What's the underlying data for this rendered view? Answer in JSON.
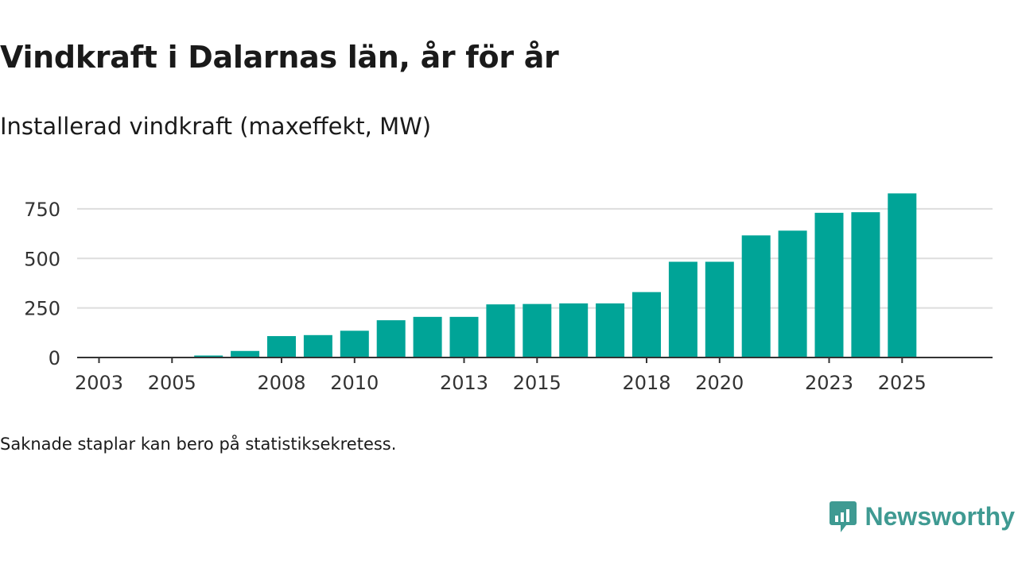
{
  "header": {
    "title": "Vindkraft i Dalarnas län, år för år",
    "subtitle": "Installerad vindkraft (maxeffekt, MW)"
  },
  "footer": {
    "note": "Saknade staplar kan bero på statistiksekretess.",
    "brand": "Newsworthy"
  },
  "colors": {
    "bar": "#00a497",
    "grid": "#dddddd",
    "axis": "#333333",
    "brand": "#3f9a92"
  },
  "chart_data": {
    "type": "bar",
    "title": "Vindkraft i Dalarnas län, år för år",
    "subtitle": "Installerad vindkraft (maxeffekt, MW)",
    "xlabel": "",
    "ylabel": "",
    "ylim": [
      0,
      850
    ],
    "yticks": [
      0,
      250,
      500,
      750
    ],
    "xtick_labels": [
      "2003",
      "2005",
      "2008",
      "2010",
      "2013",
      "2015",
      "2018",
      "2020",
      "2023",
      "2025"
    ],
    "categories": [
      "2003",
      "2004",
      "2005",
      "2006",
      "2007",
      "2008",
      "2009",
      "2010",
      "2011",
      "2012",
      "2013",
      "2014",
      "2015",
      "2016",
      "2017",
      "2018",
      "2019",
      "2020",
      "2021",
      "2022",
      "2023",
      "2024",
      "2025"
    ],
    "values": [
      0,
      0,
      0,
      10,
      33,
      108,
      113,
      135,
      188,
      205,
      205,
      268,
      270,
      273,
      273,
      330,
      483,
      483,
      616,
      640,
      730,
      733,
      828
    ],
    "grid": true,
    "legend": "none"
  }
}
